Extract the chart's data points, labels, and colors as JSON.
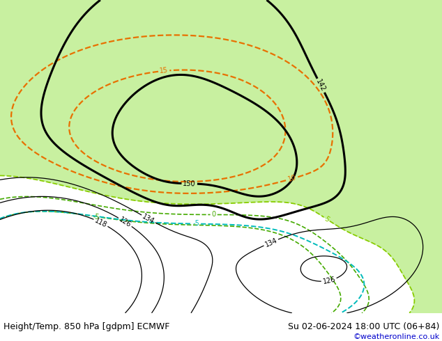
{
  "title_left": "Height/Temp. 850 hPa [gdpm] ECMWF",
  "title_right": "Su 02-06-2024 18:00 UTC (06+84)",
  "copyright": "©weatheronline.co.uk",
  "land_color": "#d4d4d4",
  "australia_green_color": "#c8f0a0",
  "water_color": "#e8e8e8",
  "bottom_bar_color": "#d8d8d8",
  "text_color": "#000000",
  "copyright_color": "#0000cc",
  "fig_width": 6.34,
  "fig_height": 4.9,
  "dpi": 100,
  "title_fontsize": 9.0,
  "copyright_fontsize": 8.0,
  "lon_min": 80,
  "lon_max": 200,
  "lat_min": -65,
  "lat_max": 20
}
